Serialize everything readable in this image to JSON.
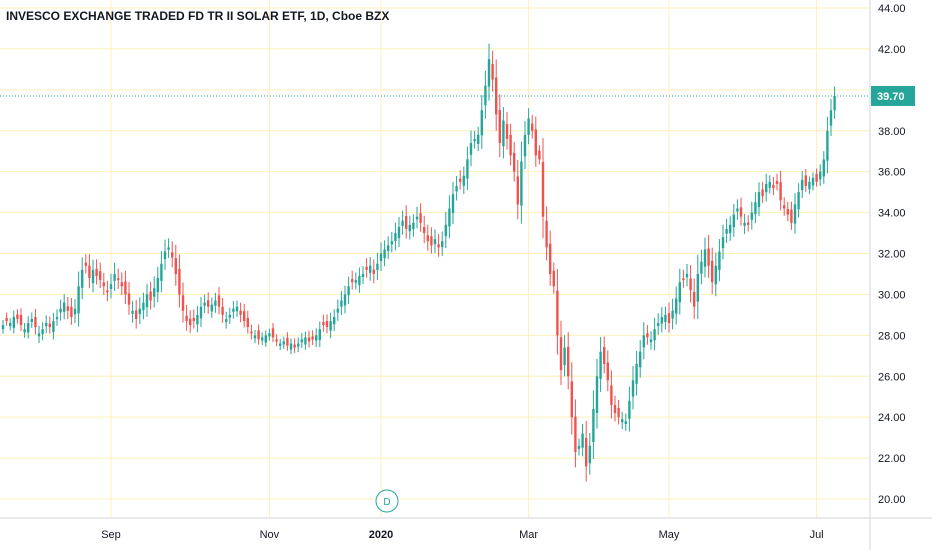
{
  "chart_data": {
    "type": "candlestick",
    "title": "INVESCO EXCHANGE TRADED FD TR II SOLAR ETF, 1D, Cboe BZX",
    "ylim": [
      19,
      45
    ],
    "y_ticks": [
      "20.00",
      "22.00",
      "24.00",
      "26.00",
      "28.00",
      "30.00",
      "32.00",
      "34.00",
      "36.00",
      "38.00",
      "40.00",
      "42.00",
      "44.00"
    ],
    "x_labels": [
      {
        "label": "Sep",
        "index": 30,
        "bold": false
      },
      {
        "label": "Nov",
        "index": 74,
        "bold": false
      },
      {
        "label": "2020",
        "index": 105,
        "bold": true
      },
      {
        "label": "Mar",
        "index": 146,
        "bold": false
      },
      {
        "label": "May",
        "index": 185,
        "bold": false
      },
      {
        "label": "Jul",
        "index": 226,
        "bold": false
      }
    ],
    "last_price": "39.70",
    "last_value": 39.7,
    "marker": "D",
    "colors": {
      "up": "#26a69a",
      "down": "#ef5350",
      "grid": "#fdf0b8",
      "price_line": "#26a69a"
    },
    "closes": [
      28.5,
      28.7,
      28.6,
      28.9,
      28.8,
      28.5,
      28.3,
      28.6,
      28.8,
      28.4,
      28.1,
      28.3,
      28.6,
      28.4,
      28.7,
      28.9,
      29.3,
      29.6,
      29.2,
      28.9,
      29.3,
      30.4,
      31.2,
      31.4,
      30.8,
      31.2,
      30.9,
      30.7,
      30.4,
      30.1,
      30.5,
      31.0,
      30.7,
      30.4,
      30.0,
      29.5,
      29.2,
      28.8,
      29.3,
      29.6,
      30.0,
      29.7,
      30.3,
      30.8,
      31.5,
      32.1,
      32.3,
      31.8,
      31.0,
      30.0,
      29.2,
      28.7,
      28.5,
      28.7,
      29.0,
      29.4,
      29.6,
      29.4,
      29.5,
      29.7,
      29.4,
      29.0,
      28.8,
      29.0,
      29.3,
      29.4,
      29.0,
      28.7,
      28.4,
      28.1,
      28.0,
      27.8,
      27.9,
      28.0,
      28.1,
      27.9,
      27.7,
      27.6,
      27.7,
      27.5,
      27.6,
      27.4,
      27.6,
      27.8,
      27.9,
      27.7,
      27.8,
      28.0,
      28.3,
      28.5,
      28.4,
      28.7,
      28.9,
      29.3,
      29.7,
      30.0,
      30.4,
      30.6,
      30.7,
      30.9,
      31.0,
      31.2,
      31.4,
      31.0,
      31.5,
      32.0,
      32.2,
      32.4,
      32.6,
      33.0,
      33.3,
      33.6,
      33.2,
      33.4,
      33.5,
      33.8,
      33.5,
      33.0,
      32.6,
      32.4,
      32.7,
      32.3,
      32.6,
      33.4,
      34.2,
      34.9,
      35.3,
      35.5,
      35.8,
      36.6,
      37.4,
      37.6,
      37.8,
      39.0,
      40.2,
      41.5,
      40.5,
      38.8,
      37.4,
      38.5,
      37.6,
      36.8,
      36.0,
      34.4,
      36.5,
      37.8,
      38.6,
      38.0,
      36.8,
      36.6,
      33.8,
      32.3,
      31.0,
      30.4,
      28.0,
      26.3,
      27.4,
      26.0,
      24.0,
      22.3,
      22.6,
      23.2,
      21.6,
      22.6,
      24.4,
      26.0,
      27.2,
      26.6,
      25.8,
      24.6,
      24.2,
      24.0,
      23.9,
      23.8,
      24.8,
      25.8,
      26.6,
      27.2,
      28.0,
      27.9,
      27.8,
      28.3,
      28.6,
      28.9,
      29.0,
      28.6,
      29.2,
      29.8,
      30.6,
      30.7,
      31.0,
      30.2,
      29.4,
      31.0,
      31.6,
      32.2,
      31.4,
      30.6,
      31.4,
      32.1,
      32.8,
      33.2,
      33.4,
      33.9,
      34.2,
      33.8,
      33.5,
      33.4,
      34.0,
      34.5,
      35.0,
      34.8,
      35.4,
      35.5,
      35.2,
      35.4,
      34.6,
      34.2,
      33.9,
      33.5,
      34.4,
      35.0,
      35.6,
      35.3,
      35.5,
      35.7,
      35.5,
      36.0,
      36.6,
      38.0,
      39.0,
      39.7
    ]
  }
}
